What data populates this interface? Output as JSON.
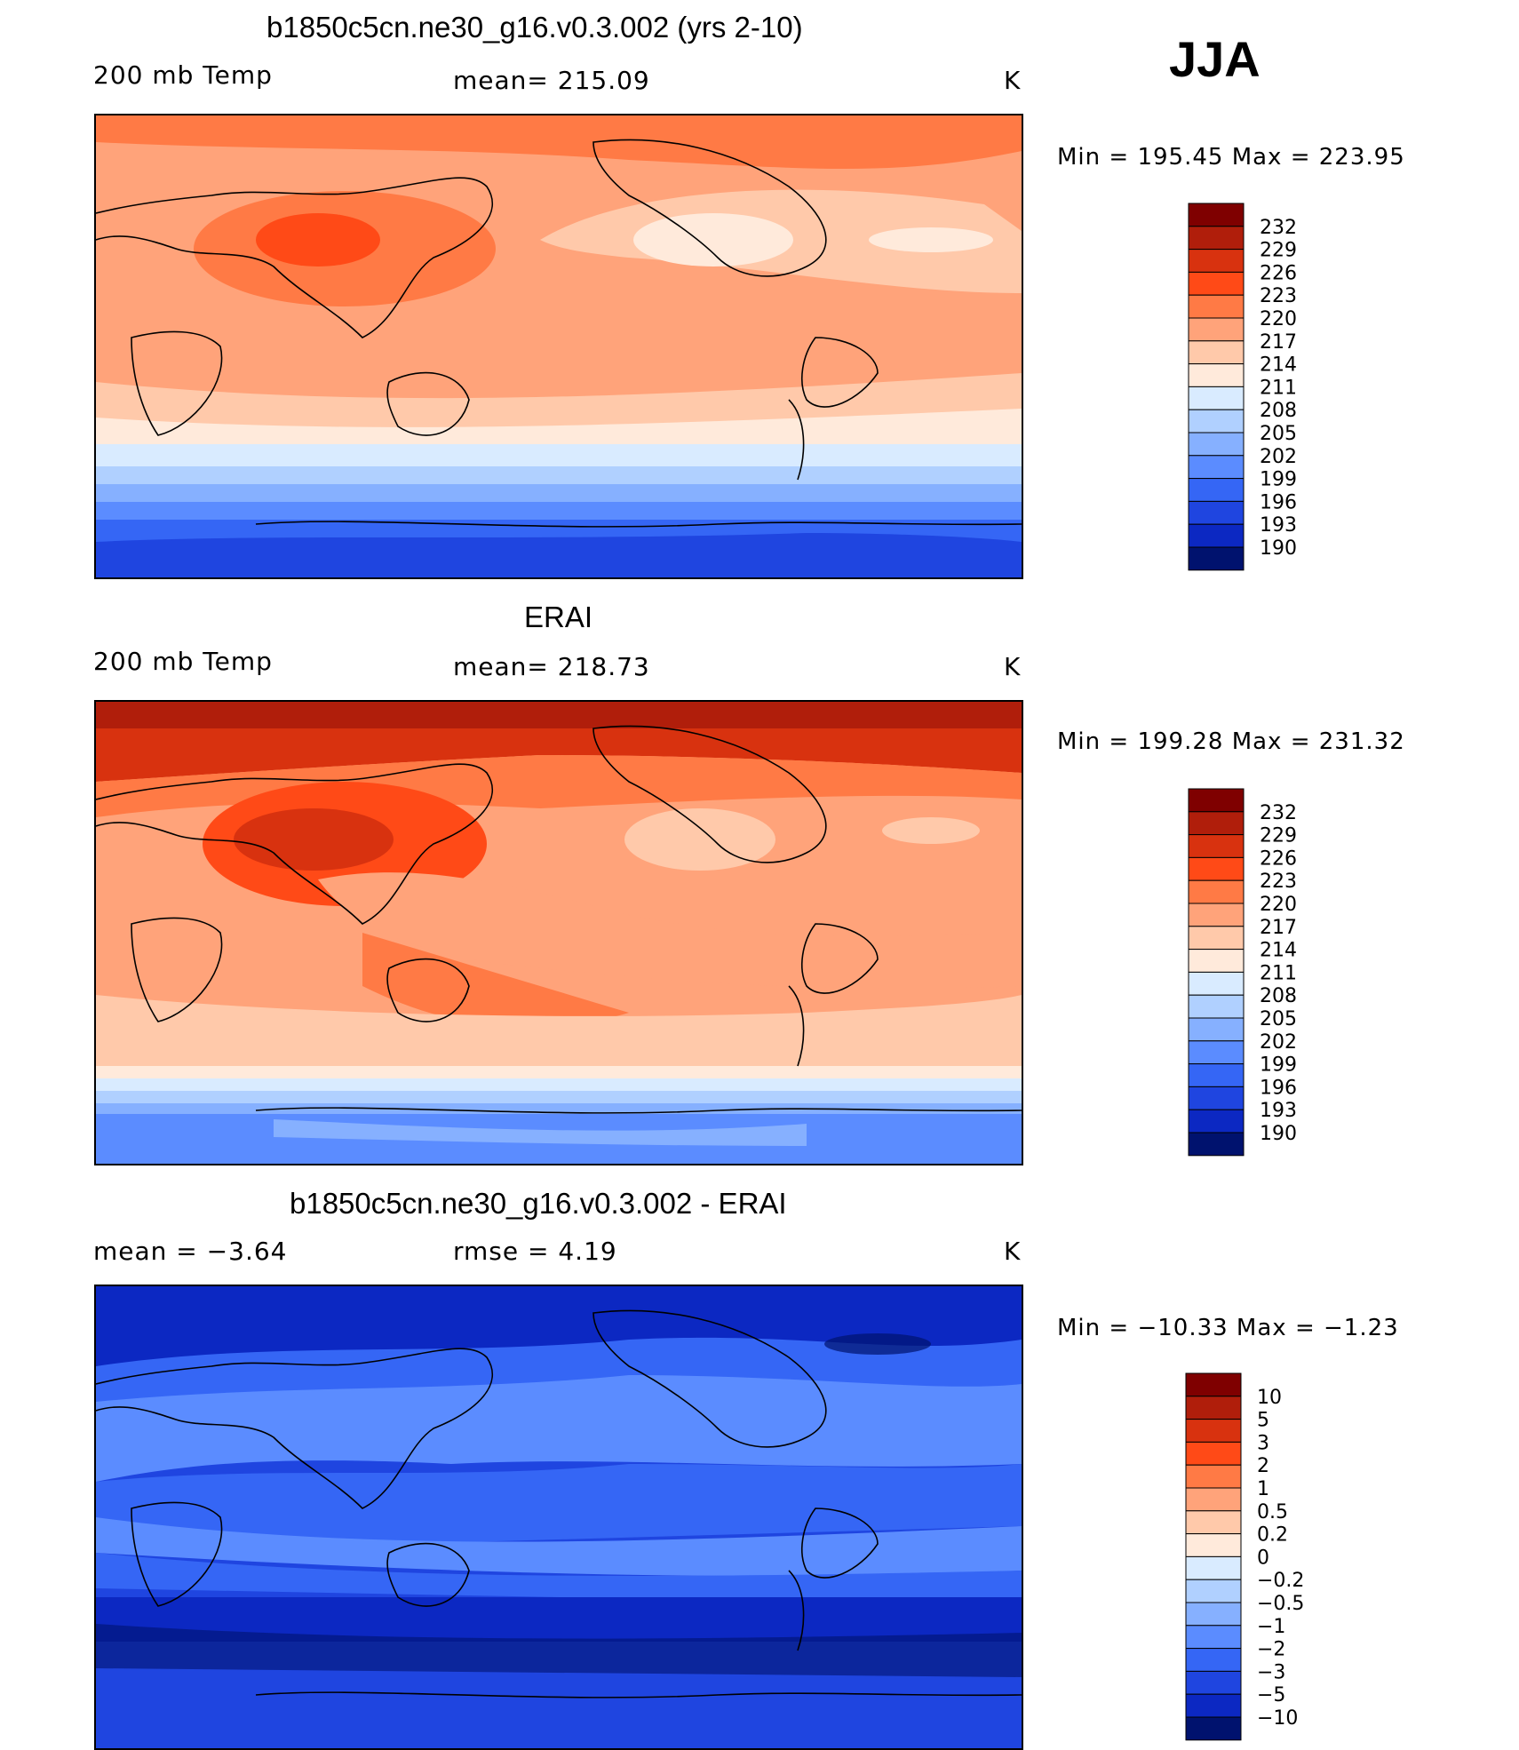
{
  "season": "JJA",
  "panels": [
    {
      "title": "b1850c5cn.ne30_g16.v0.3.002 (yrs 2-10)",
      "left_label": "200 mb Temp",
      "center_label": "mean= 215.09",
      "right_label": "K",
      "minmax": "Min = 195.45 Max = 223.95",
      "colorbar": [
        "232",
        "229",
        "226",
        "223",
        "220",
        "217",
        "214",
        "211",
        "208",
        "205",
        "202",
        "199",
        "196",
        "193",
        "190"
      ]
    },
    {
      "title": "ERAI",
      "left_label": "200 mb Temp",
      "center_label": "mean= 218.73",
      "right_label": "K",
      "minmax": "Min = 199.28 Max = 231.32",
      "colorbar": [
        "232",
        "229",
        "226",
        "223",
        "220",
        "217",
        "214",
        "211",
        "208",
        "205",
        "202",
        "199",
        "196",
        "193",
        "190"
      ]
    },
    {
      "title": "b1850c5cn.ne30_g16.v0.3.002 - ERAI",
      "left_label": "mean =   −3.64",
      "center_label": "rmse =    4.19",
      "right_label": "K",
      "minmax": "Min = −10.33 Max =   −1.23",
      "colorbar": [
        "10",
        "5",
        "3",
        "2",
        "1",
        "0.5",
        "0.2",
        "0",
        "−0.2",
        "−0.5",
        "−1",
        "−2",
        "−3",
        "−5",
        "−10"
      ]
    }
  ],
  "palette": [
    "#7f0000",
    "#b01e0b",
    "#d8320f",
    "#ff4a17",
    "#ff7a45",
    "#ffa37a",
    "#ffc9aa",
    "#ffeadb",
    "#d9ebff",
    "#b0d0ff",
    "#86b0ff",
    "#5b8cff",
    "#3566f5",
    "#1f45e0",
    "#0c28c2",
    "#00126e"
  ]
}
